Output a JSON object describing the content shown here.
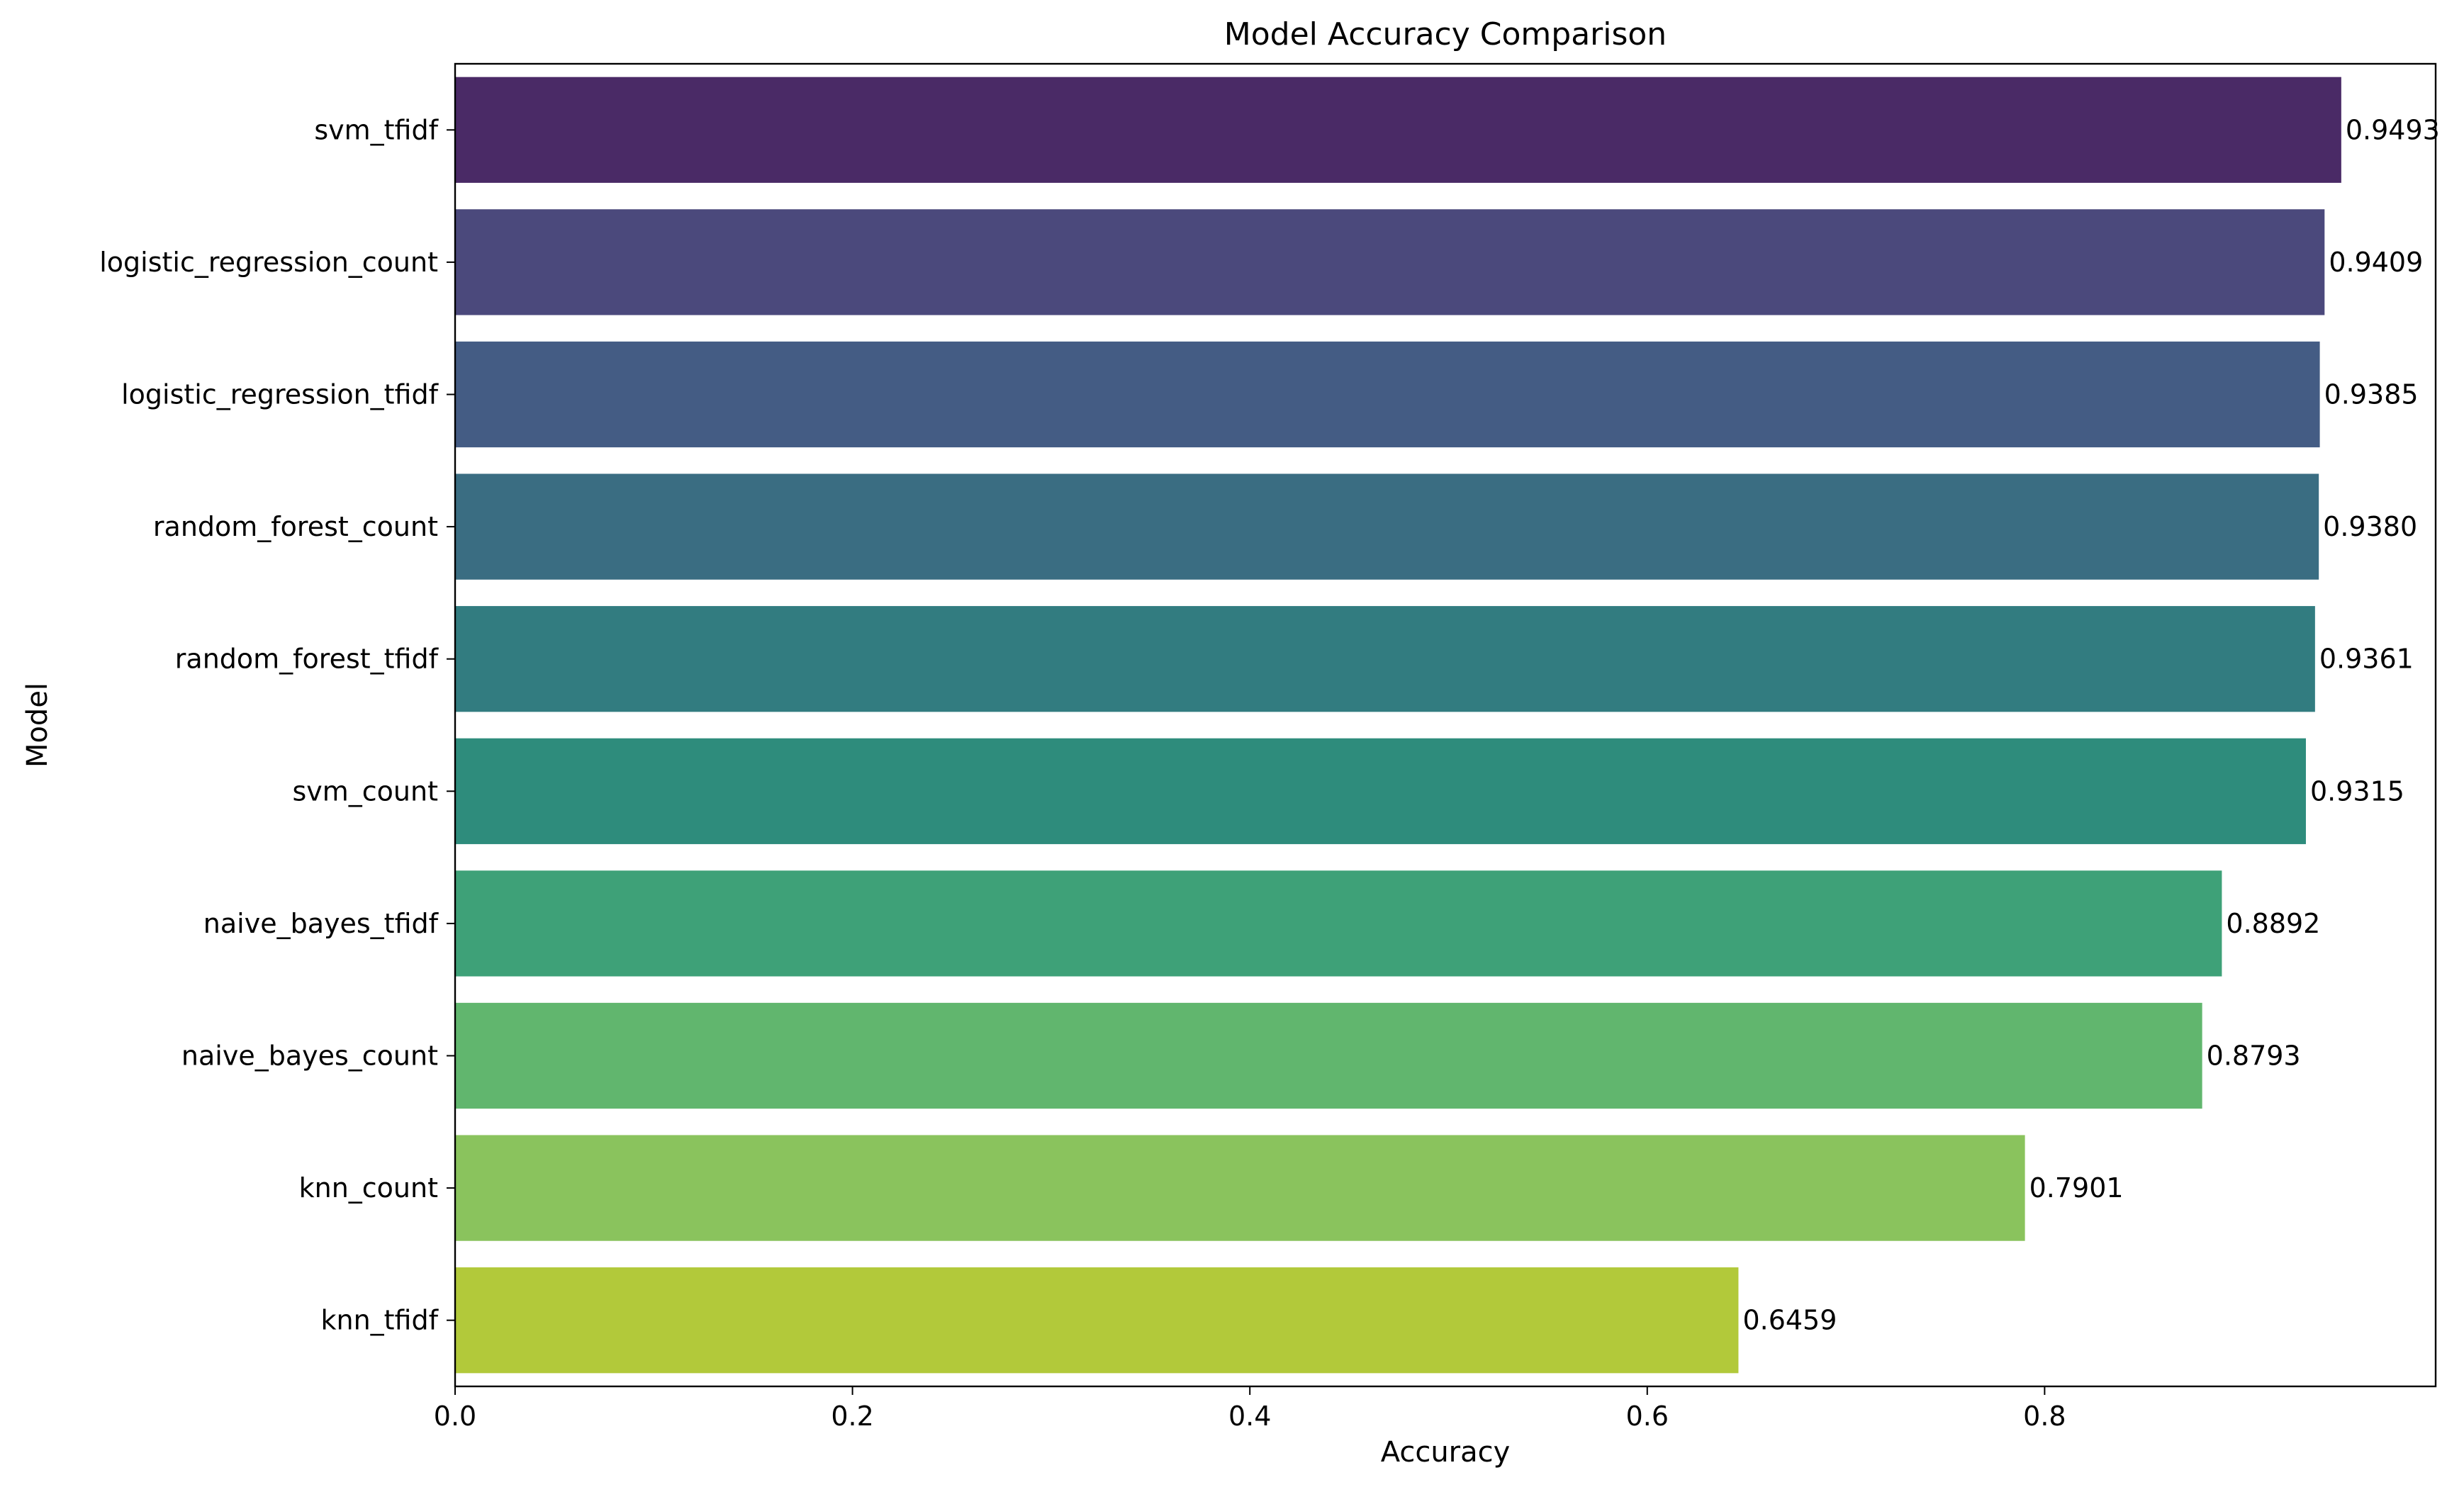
{
  "chart_data": {
    "type": "bar",
    "orientation": "horizontal",
    "title": "Model Accuracy Comparison",
    "xlabel": "Accuracy",
    "ylabel": "Model",
    "xlim": [
      0,
      0.9968
    ],
    "x_ticks": [
      0.0,
      0.2,
      0.4,
      0.6,
      0.8
    ],
    "x_tick_labels": [
      "0.0",
      "0.2",
      "0.4",
      "0.6",
      "0.8"
    ],
    "grid": false,
    "legend": "none",
    "categories": [
      "svm_tfidf",
      "logistic_regression_count",
      "logistic_regression_tfidf",
      "random_forest_count",
      "random_forest_tfidf",
      "svm_count",
      "naive_bayes_tfidf",
      "naive_bayes_count",
      "knn_count",
      "knn_tfidf"
    ],
    "values": [
      0.9493,
      0.9409,
      0.9385,
      0.938,
      0.9361,
      0.9315,
      0.8892,
      0.8793,
      0.7901,
      0.6459
    ],
    "value_labels": [
      "0.9493",
      "0.9409",
      "0.9385",
      "0.9380",
      "0.9361",
      "0.9315",
      "0.8892",
      "0.8793",
      "0.7901",
      "0.6459"
    ],
    "colors": [
      "#4a2a66",
      "#4b497c",
      "#445c84",
      "#3a6d82",
      "#327c80",
      "#2e8c7c",
      "#3ea178",
      "#61b66e",
      "#8ac35d",
      "#b2c93a"
    ]
  }
}
